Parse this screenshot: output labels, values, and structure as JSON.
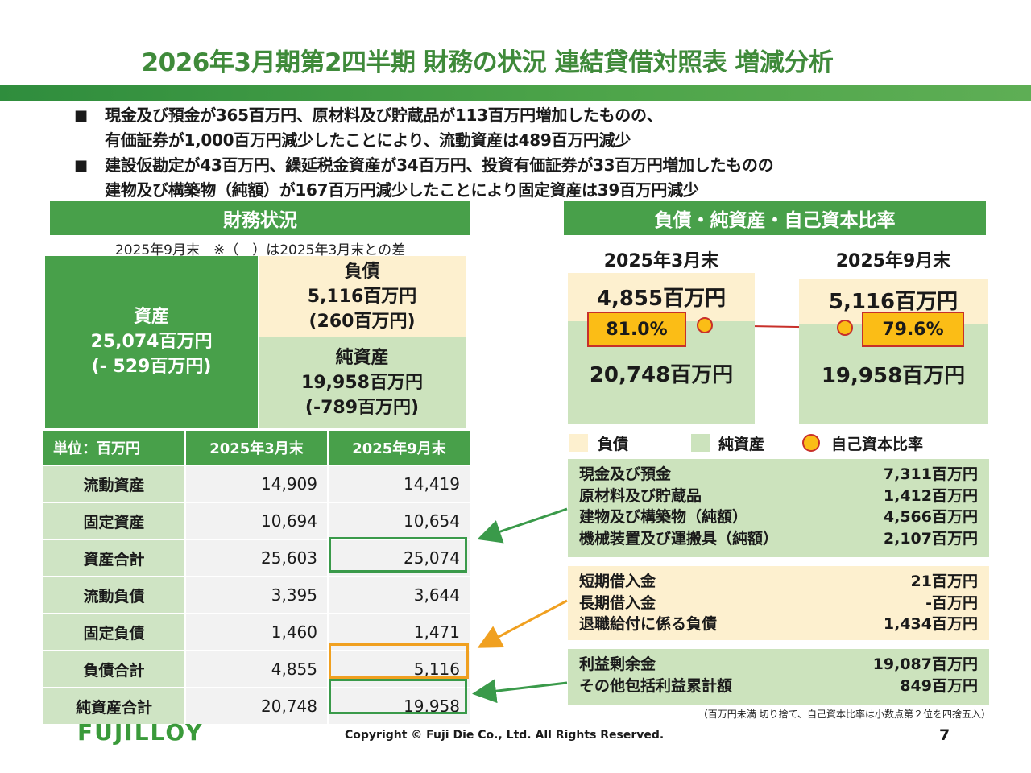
{
  "title": "2026年3月期第2四半期 財務の状況 連結貸借対照表 増減分析",
  "bullets": [
    "現金及び預金が365百万円、原材料及び貯蔵品が113百万円増加したものの、\n有価証券が1,000百万円減少したことにより、流動資産は489百万円減少",
    "建設仮勘定が43百万円、繰延税金資産が34百万円、投資有価証券が33百万円増加したものの\n建物及び構築物（純額）が167百万円減少したことにより固定資産は39百万円減少"
  ],
  "bullet_mark": "■",
  "left_panel": {
    "header": "財務状況",
    "note": "2025年9月末　※（　）は2025年3月末との差",
    "assets": {
      "label": "資産",
      "value": "25,074百万円",
      "diff": "(- 529百万円)"
    },
    "liabilities": {
      "label": "負債",
      "value": "5,116百万円",
      "diff": "(260百万円)"
    },
    "net_assets": {
      "label": "純資産",
      "value": "19,958百万円",
      "diff": "(-789百万円)"
    }
  },
  "table": {
    "headers": [
      "単位：百万円",
      "2025年3月末",
      "2025年9月末"
    ],
    "rows": [
      [
        "流動資産",
        "14,909",
        "14,419"
      ],
      [
        "固定資産",
        "10,694",
        "10,654"
      ],
      [
        "資産合計",
        "25,603",
        "25,074"
      ],
      [
        "流動負債",
        "3,395",
        "3,644"
      ],
      [
        "固定負債",
        "1,460",
        "1,471"
      ],
      [
        "負債合計",
        "4,855",
        "5,116"
      ],
      [
        "純資産合計",
        "20,748",
        "19,958"
      ]
    ]
  },
  "right_panel": {
    "header": "負債・純資産・自己資本比率",
    "periods": [
      {
        "label": "2025年3月末",
        "liabilities": "4,855百万円",
        "net_assets": "20,748百万円",
        "ratio": "81.0%"
      },
      {
        "label": "2025年9月末",
        "liabilities": "5,116百万円",
        "net_assets": "19,958百万円",
        "ratio": "79.6%"
      }
    ],
    "legend": {
      "liabilities": "負債",
      "net_assets": "純資産",
      "ratio": "自己資本比率"
    },
    "asset_details": [
      {
        "label": "現金及び預金",
        "value": "7,311百万円"
      },
      {
        "label": "原材料及び貯蔵品",
        "value": "1,412百万円"
      },
      {
        "label": "建物及び構築物（純額）",
        "value": "4,566百万円"
      },
      {
        "label": "機械装置及び運搬具（純額）",
        "value": "2,107百万円"
      }
    ],
    "liability_details": [
      {
        "label": "短期借入金",
        "value": "21百万円"
      },
      {
        "label": "長期借入金",
        "value": "-百万円"
      },
      {
        "label": "退職給付に係る負債",
        "value": "1,434百万円"
      }
    ],
    "equity_details": [
      {
        "label": "利益剰余金",
        "value": "19,087百万円"
      },
      {
        "label": "その他包括利益累計額",
        "value": "849百万円"
      }
    ],
    "footnote": "（百万円未満 切り捨て、自己資本比率は小数点第２位を四捨五入）"
  },
  "footer": {
    "logo": "FUJILLOY",
    "copyright": "Copyright © Fuji Die Co., Ltd. All Rights Reserved.",
    "page": "7"
  },
  "colors": {
    "green": "#48a04a",
    "light_green": "#cce3bd",
    "cream": "#fdf0cf",
    "ratio_fill": "#fbbd16",
    "ratio_line": "#c8302a",
    "arrow_orange": "#f0a020"
  }
}
